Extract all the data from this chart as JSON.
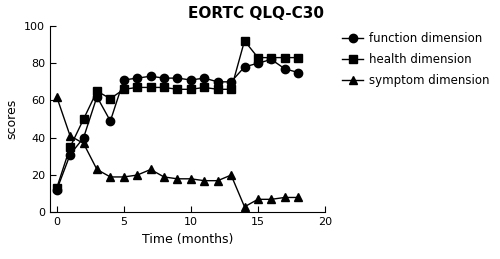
{
  "title": "EORTC QLQ-C30",
  "xlabel": "Time (months)",
  "ylabel": "scores",
  "xlim": [
    -0.5,
    20
  ],
  "ylim": [
    0,
    100
  ],
  "xticks": [
    0,
    5,
    10,
    15,
    20
  ],
  "yticks": [
    0,
    20,
    40,
    60,
    80,
    100
  ],
  "function_dimension": {
    "x": [
      0,
      1,
      2,
      3,
      4,
      5,
      6,
      7,
      8,
      9,
      10,
      11,
      12,
      13,
      14,
      15,
      16,
      17,
      18
    ],
    "y": [
      12,
      31,
      40,
      62,
      49,
      71,
      72,
      73,
      72,
      72,
      71,
      72,
      70,
      70,
      78,
      80,
      82,
      77,
      75
    ],
    "label": "function dimension",
    "marker": "o",
    "color": "#000000"
  },
  "health_dimension": {
    "x": [
      0,
      1,
      2,
      3,
      4,
      5,
      6,
      7,
      8,
      9,
      10,
      11,
      12,
      13,
      14,
      15,
      16,
      17,
      18
    ],
    "y": [
      13,
      35,
      50,
      65,
      61,
      66,
      67,
      67,
      67,
      66,
      66,
      67,
      66,
      66,
      92,
      83,
      83,
      83,
      83
    ],
    "label": "health dimension",
    "marker": "s",
    "color": "#000000"
  },
  "symptom_dimension": {
    "x": [
      0,
      1,
      2,
      3,
      4,
      5,
      6,
      7,
      8,
      9,
      10,
      11,
      12,
      13,
      14,
      15,
      16,
      17,
      18
    ],
    "y": [
      62,
      41,
      37,
      23,
      19,
      19,
      20,
      23,
      19,
      18,
      18,
      17,
      17,
      20,
      3,
      7,
      7,
      8,
      8
    ],
    "label": "symptom dimension",
    "marker": "^",
    "color": "#000000"
  },
  "legend_fontsize": 8.5,
  "axis_fontsize": 9,
  "title_fontsize": 11,
  "linewidth": 1.0,
  "markersize": 6,
  "background_color": "#ffffff"
}
